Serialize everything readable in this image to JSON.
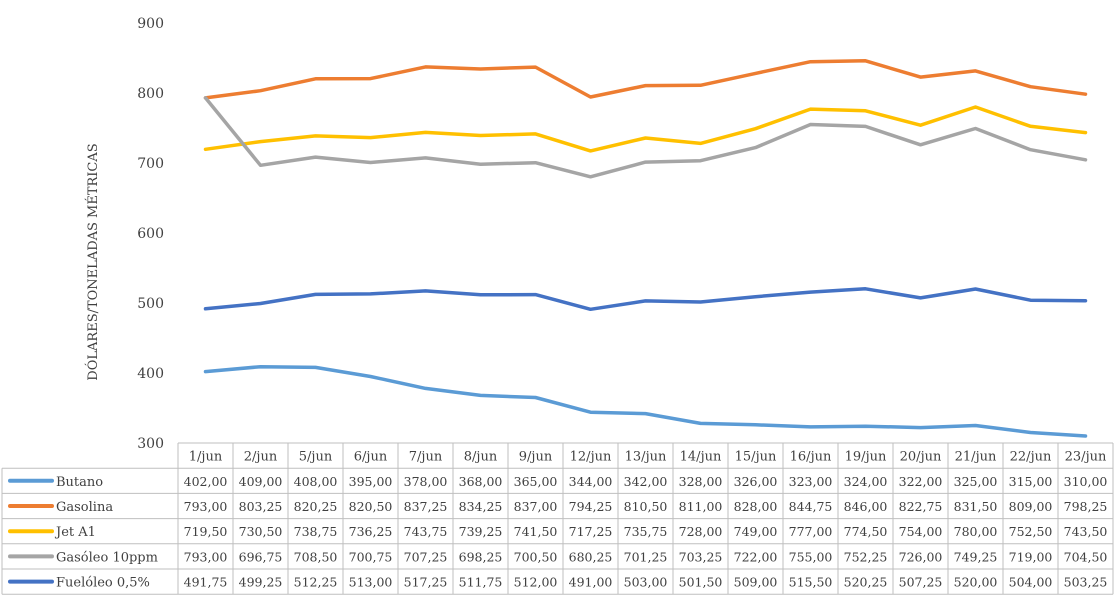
{
  "chart_data": {
    "type": "line",
    "title": "",
    "xlabel": "",
    "ylabel": "DÓLARES/TONELADAS MÉTRICAS",
    "ylim": [
      300,
      900
    ],
    "yticks": [
      300,
      400,
      500,
      600,
      700,
      800,
      900
    ],
    "grid": false,
    "legend": "data-table",
    "categories": [
      "1/jun",
      "2/jun",
      "5/jun",
      "6/jun",
      "7/jun",
      "8/jun",
      "9/jun",
      "12/jun",
      "13/jun",
      "14/jun",
      "15/jun",
      "16/jun",
      "19/jun",
      "20/jun",
      "21/jun",
      "22/jun",
      "23/jun"
    ],
    "series": [
      {
        "name": "Butano",
        "color": "#5b9bd5",
        "values": [
          402.0,
          409.0,
          408.0,
          395.0,
          378.0,
          368.0,
          365.0,
          344.0,
          342.0,
          328.0,
          326.0,
          323.0,
          324.0,
          322.0,
          325.0,
          315.0,
          310.0
        ],
        "labels": [
          "402,00",
          "409,00",
          "408,00",
          "395,00",
          "378,00",
          "368,00",
          "365,00",
          "344,00",
          "342,00",
          "328,00",
          "326,00",
          "323,00",
          "324,00",
          "322,00",
          "325,00",
          "315,00",
          "310,00"
        ]
      },
      {
        "name": "Gasolina",
        "color": "#ed7d31",
        "values": [
          793.0,
          803.25,
          820.25,
          820.5,
          837.25,
          834.25,
          837.0,
          794.25,
          810.5,
          811.0,
          828.0,
          844.75,
          846.0,
          822.75,
          831.5,
          809.0,
          798.25
        ],
        "labels": [
          "793,00",
          "803,25",
          "820,25",
          "820,50",
          "837,25",
          "834,25",
          "837,00",
          "794,25",
          "810,50",
          "811,00",
          "828,00",
          "844,75",
          "846,00",
          "822,75",
          "831,50",
          "809,00",
          "798,25"
        ]
      },
      {
        "name": "Jet A1",
        "color": "#ffc000",
        "values": [
          719.5,
          730.5,
          738.75,
          736.25,
          743.75,
          739.25,
          741.5,
          717.25,
          735.75,
          728.0,
          749.0,
          777.0,
          774.5,
          754.0,
          780.0,
          752.5,
          743.5
        ],
        "labels": [
          "719,50",
          "730,50",
          "738,75",
          "736,25",
          "743,75",
          "739,25",
          "741,50",
          "717,25",
          "735,75",
          "728,00",
          "749,00",
          "777,00",
          "774,50",
          "754,00",
          "780,00",
          "752,50",
          "743,50"
        ]
      },
      {
        "name": "Gasóleo 10ppm",
        "color": "#a5a5a5",
        "values": [
          793.0,
          696.75,
          708.5,
          700.75,
          707.25,
          698.25,
          700.5,
          680.25,
          701.25,
          703.25,
          722.0,
          755.0,
          752.25,
          726.0,
          749.25,
          719.0,
          704.5
        ],
        "labels": [
          "793,00",
          "696,75",
          "708,50",
          "700,75",
          "707,25",
          "698,25",
          "700,50",
          "680,25",
          "701,25",
          "703,25",
          "722,00",
          "755,00",
          "752,25",
          "726,00",
          "749,25",
          "719,00",
          "704,50"
        ]
      },
      {
        "name": "Fuelóleo 0,5%",
        "color": "#4472c4",
        "values": [
          491.75,
          499.25,
          512.25,
          513.0,
          517.25,
          511.75,
          512.0,
          491.0,
          503.0,
          501.5,
          509.0,
          515.5,
          520.25,
          507.25,
          520.0,
          504.0,
          503.25
        ],
        "labels": [
          "491,75",
          "499,25",
          "512,25",
          "513,00",
          "517,25",
          "511,75",
          "512,00",
          "491,00",
          "503,00",
          "501,50",
          "509,00",
          "515,50",
          "520,25",
          "507,25",
          "520,00",
          "504,00",
          "503,25"
        ]
      }
    ]
  }
}
